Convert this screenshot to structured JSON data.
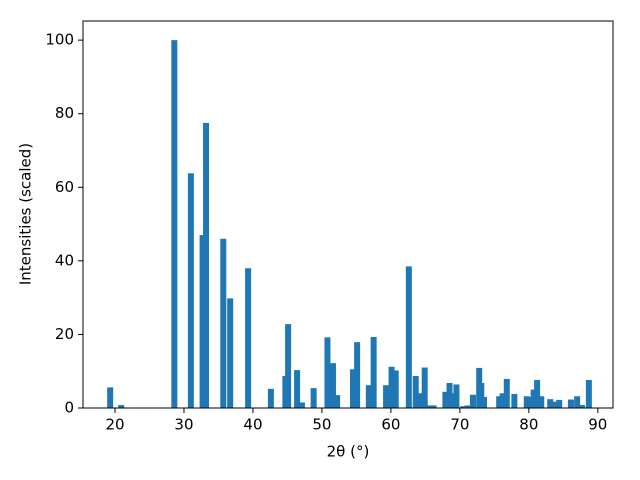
{
  "chart_data": {
    "type": "bar",
    "x_label": "2θ (°)",
    "y_label": "Intensities (scaled)",
    "x": [
      19.3,
      20.9,
      28.6,
      31.0,
      32.7,
      33.2,
      35.7,
      36.7,
      39.3,
      42.6,
      44.7,
      45.1,
      46.4,
      47.1,
      48.8,
      50.8,
      51.6,
      52.2,
      54.5,
      55.1,
      56.8,
      57.5,
      59.3,
      60.1,
      60.7,
      62.6,
      63.6,
      64.4,
      64.9,
      65.6,
      66.2,
      67.9,
      68.5,
      68.9,
      69.5,
      70.5,
      71.1,
      71.9,
      72.8,
      73.1,
      73.5,
      75.7,
      76.2,
      76.8,
      77.9,
      79.7,
      80.2,
      80.7,
      81.2,
      81.8,
      83.1,
      83.6,
      84.4,
      86.1,
      87.0,
      87.7,
      88.7
    ],
    "values": [
      5.6,
      0.8,
      100,
      63.8,
      47,
      77.5,
      46,
      29.8,
      38,
      5.2,
      8.7,
      22.8,
      10.3,
      1.5,
      5.4,
      19.2,
      12.2,
      3.5,
      10.5,
      17.9,
      6.2,
      19.3,
      6.2,
      11.2,
      10.2,
      38.5,
      8.7,
      4,
      11,
      0.7,
      0.7,
      4.4,
      6.8,
      4,
      6.4,
      0.5,
      0.7,
      3.6,
      10.9,
      6.8,
      3,
      3.2,
      4,
      7.9,
      3.8,
      3.2,
      3,
      5,
      7.6,
      3.2,
      2.4,
      1.7,
      2.2,
      2.3,
      3.2,
      0.8,
      7.6
    ],
    "color": "#1f77b4",
    "xlim": [
      15.36,
      92.2
    ],
    "ylim": [
      0,
      105.2
    ],
    "xticks": [
      20,
      30,
      40,
      50,
      60,
      70,
      80,
      90
    ],
    "yticks": [
      0,
      20,
      40,
      60,
      80,
      100
    ],
    "grid": false
  }
}
